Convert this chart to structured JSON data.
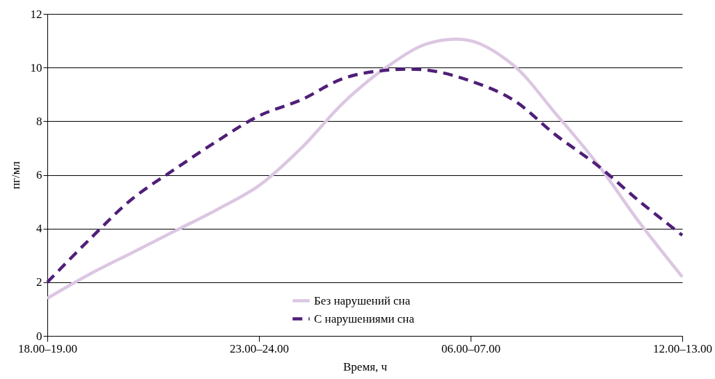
{
  "chart_data": {
    "type": "line",
    "xlabel": "Время, ч",
    "ylabel": "пг/мл",
    "categories": [
      "18.00–19.00",
      null,
      null,
      null,
      null,
      "23.00–24.00",
      null,
      null,
      null,
      null,
      "06.00–07.00",
      null,
      null,
      null,
      null,
      "12.00–13.00"
    ],
    "series": [
      {
        "name": "Без нарушений сна",
        "color": "#dcc6e2",
        "line_style": "solid",
        "values": [
          1.4,
          2.3,
          3.1,
          3.9,
          4.7,
          5.6,
          7.0,
          8.7,
          10.0,
          10.9,
          11.0,
          10.1,
          8.3,
          6.4,
          4.2,
          2.2
        ]
      },
      {
        "name": "С нарушениями сна",
        "color": "#4f1f78",
        "line_style": "dashed",
        "values": [
          2.0,
          3.6,
          5.1,
          6.2,
          7.25,
          8.2,
          8.8,
          9.6,
          9.9,
          9.9,
          9.5,
          8.8,
          7.5,
          6.35,
          5.0,
          3.75
        ]
      }
    ],
    "ylim": [
      0,
      12
    ],
    "yticks": [
      0,
      2,
      4,
      6,
      8,
      10,
      12
    ],
    "grid": "y",
    "legend": "bottom",
    "marker": "none"
  }
}
